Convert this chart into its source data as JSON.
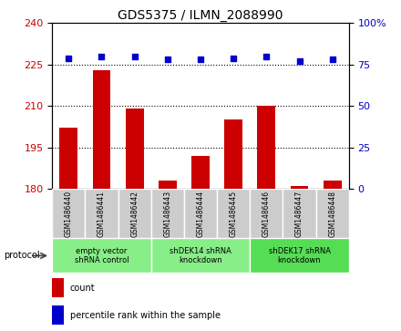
{
  "title": "GDS5375 / ILMN_2088990",
  "samples": [
    "GSM1486440",
    "GSM1486441",
    "GSM1486442",
    "GSM1486443",
    "GSM1486444",
    "GSM1486445",
    "GSM1486446",
    "GSM1486447",
    "GSM1486448"
  ],
  "counts": [
    202,
    223,
    209,
    183,
    192,
    205,
    210,
    181,
    183
  ],
  "percentile_ranks": [
    79,
    80,
    80,
    78,
    78,
    79,
    80,
    77,
    78
  ],
  "ylim_left": [
    180,
    240
  ],
  "yticks_left": [
    180,
    195,
    210,
    225,
    240
  ],
  "ylim_right": [
    0,
    100
  ],
  "yticks_right": [
    0,
    25,
    50,
    75,
    100
  ],
  "hlines": [
    195,
    210,
    225
  ],
  "bar_color": "#cc0000",
  "scatter_color": "#0000cc",
  "groups": [
    {
      "label": "empty vector\nshRNA control",
      "start": 0,
      "end": 3,
      "color": "#88ee88"
    },
    {
      "label": "shDEK14 shRNA\nknockdown",
      "start": 3,
      "end": 6,
      "color": "#88ee88"
    },
    {
      "label": "shDEK17 shRNA\nknockdown",
      "start": 6,
      "end": 9,
      "color": "#55dd55"
    }
  ],
  "protocol_label": "protocol",
  "legend_count_label": "count",
  "legend_pct_label": "percentile rank within the sample",
  "bar_width": 0.55,
  "axis_label_color_left": "#cc0000",
  "axis_label_color_right": "#0000cc",
  "sample_box_color": "#cccccc",
  "grid_color": "#888888"
}
